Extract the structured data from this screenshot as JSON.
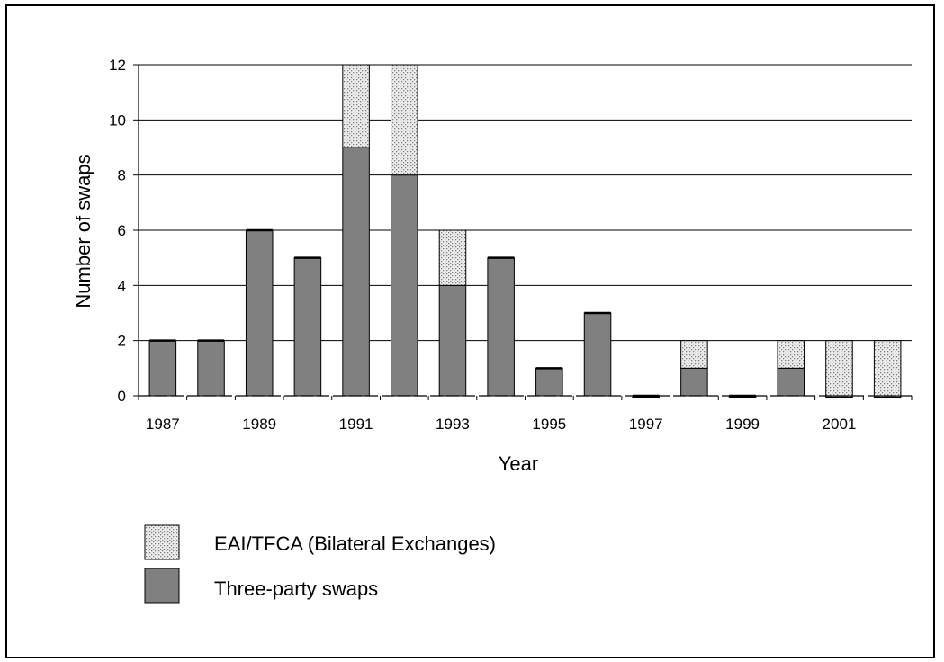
{
  "chart_data": {
    "type": "bar",
    "stacked": true,
    "categories": [
      "1987",
      "1988",
      "1989",
      "1990",
      "1991",
      "1992",
      "1993",
      "1994",
      "1995",
      "1996",
      "1997",
      "1998",
      "1999",
      "2000",
      "2001",
      "2002"
    ],
    "x_tick_labels": [
      "1987",
      "1989",
      "1991",
      "1993",
      "1995",
      "1997",
      "1999",
      "2001"
    ],
    "series": [
      {
        "name": "Three-party swaps",
        "color": "#808080",
        "values": [
          2,
          2,
          6,
          5,
          9,
          8,
          4,
          5,
          1,
          3,
          0,
          1,
          0,
          1,
          0,
          0
        ]
      },
      {
        "name": "EAI/TFCA (Bilateral Exchanges)",
        "color": "#dcdcdc",
        "pattern": "dotted",
        "values": [
          0,
          0,
          0,
          0,
          3,
          4,
          2,
          0,
          0,
          0,
          0,
          1,
          0,
          1,
          2,
          2
        ]
      }
    ],
    "xlabel": "Year",
    "ylabel": "Number of swaps",
    "ylim": [
      0,
      12
    ],
    "yticks": [
      0,
      2,
      4,
      6,
      8,
      10,
      12
    ],
    "grid": true,
    "legend": {
      "placement": "bottom-left",
      "entries": [
        "EAI/TFCA (Bilateral Exchanges)",
        "Three-party swaps"
      ]
    }
  }
}
